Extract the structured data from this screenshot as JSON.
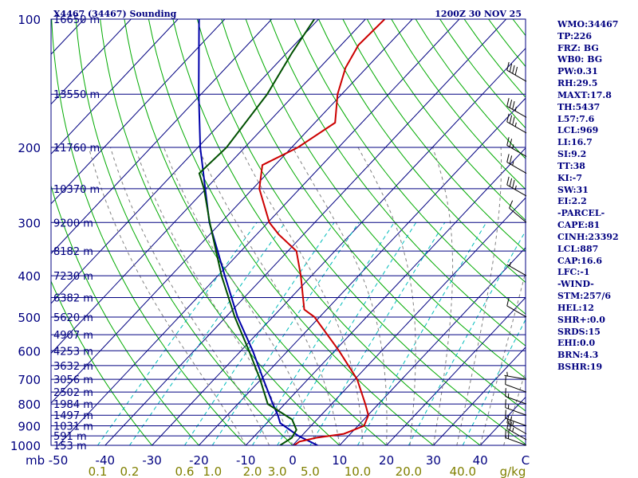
{
  "chart_data": {
    "type": "skew-t",
    "title_left": "X4467 (34467) Sounding",
    "title_right": "1200Z 30 NOV 25",
    "pressure_levels": [
      100,
      200,
      300,
      400,
      500,
      600,
      700,
      800,
      900,
      1000
    ],
    "pressure_labels": [
      "100",
      "200",
      "300",
      "400",
      "500",
      "600",
      "700",
      "800",
      "900",
      "1000"
    ],
    "pressure_unit": "mb",
    "temperature_ticks": [
      -50,
      -40,
      -30,
      -20,
      -10,
      0,
      10,
      20,
      30,
      40
    ],
    "temperature_labels": [
      "-50",
      "-40",
      "-30",
      "-20",
      "-10",
      "0",
      "10",
      "20",
      "30",
      "40"
    ],
    "temperature_unit": "C",
    "mixing_ratio_labels": [
      "0.1",
      "0.2",
      "0.6",
      "1.0",
      "2.0",
      "3.0",
      "5.0",
      "10.0",
      "20.0",
      "40.0"
    ],
    "mixing_ratio_unit": "g/kg",
    "height_levels": [
      {
        "p": 100,
        "label": "16650 m"
      },
      {
        "p": 150,
        "label": "13550 m"
      },
      {
        "p": 200,
        "label": "11760 m"
      },
      {
        "p": 250,
        "label": "10370 m"
      },
      {
        "p": 300,
        "label": "9200 m"
      },
      {
        "p": 350,
        "label": "8182 m"
      },
      {
        "p": 400,
        "label": "7230 m"
      },
      {
        "p": 450,
        "label": "6382 m"
      },
      {
        "p": 500,
        "label": "5620 m"
      },
      {
        "p": 550,
        "label": "4907 m"
      },
      {
        "p": 600,
        "label": "4253 m"
      },
      {
        "p": 650,
        "label": "3632 m"
      },
      {
        "p": 700,
        "label": "3056 m"
      },
      {
        "p": 750,
        "label": "2502 m"
      },
      {
        "p": 800,
        "label": "1984 m"
      },
      {
        "p": 850,
        "label": "1497 m"
      },
      {
        "p": 900,
        "label": "1031 m"
      },
      {
        "p": 950,
        "label": "591 m"
      },
      {
        "p": 1000,
        "label": "153 m"
      }
    ],
    "temperature_profile": [
      {
        "p": 1000,
        "t": 0.3
      },
      {
        "p": 980,
        "t": 0.7
      },
      {
        "p": 960,
        "t": 3.5
      },
      {
        "p": 940,
        "t": 8.6
      },
      {
        "p": 900,
        "t": 11.3
      },
      {
        "p": 850,
        "t": 10.1
      },
      {
        "p": 800,
        "t": 7.2
      },
      {
        "p": 700,
        "t": 0.5
      },
      {
        "p": 600,
        "t": -9.1
      },
      {
        "p": 500,
        "t": -21.1
      },
      {
        "p": 480,
        "t": -24.8
      },
      {
        "p": 400,
        "t": -32.3
      },
      {
        "p": 350,
        "t": -38.2
      },
      {
        "p": 320,
        "t": -45.3
      },
      {
        "p": 300,
        "t": -49.7
      },
      {
        "p": 250,
        "t": -58.6
      },
      {
        "p": 220,
        "t": -62.7
      },
      {
        "p": 200,
        "t": -58.7
      },
      {
        "p": 175,
        "t": -55.7
      },
      {
        "p": 150,
        "t": -60.9
      },
      {
        "p": 130,
        "t": -64.5
      },
      {
        "p": 115,
        "t": -66.3
      },
      {
        "p": 100,
        "t": -65.9
      }
    ],
    "dewpoint_profile": [
      {
        "p": 1000,
        "t": -2.7
      },
      {
        "p": 980,
        "t": -2.2
      },
      {
        "p": 960,
        "t": -1.7
      },
      {
        "p": 920,
        "t": -2.3
      },
      {
        "p": 870,
        "t": -5.3
      },
      {
        "p": 800,
        "t": -13.6
      },
      {
        "p": 700,
        "t": -20.2
      },
      {
        "p": 600,
        "t": -28.3
      },
      {
        "p": 500,
        "t": -38.1
      },
      {
        "p": 400,
        "t": -49.2
      },
      {
        "p": 300,
        "t": -62.4
      },
      {
        "p": 250,
        "t": -70.4
      },
      {
        "p": 230,
        "t": -74.5
      },
      {
        "p": 200,
        "t": -73.9
      },
      {
        "p": 150,
        "t": -75.9
      },
      {
        "p": 120,
        "t": -78.9
      },
      {
        "p": 100,
        "t": -80.9
      }
    ],
    "parcel_profile": [
      {
        "p": 1000,
        "t": 5.3
      },
      {
        "p": 950,
        "t": -0.7
      },
      {
        "p": 887,
        "t": -7.1
      },
      {
        "p": 850,
        "t": -9.2
      },
      {
        "p": 800,
        "t": -12.5
      },
      {
        "p": 700,
        "t": -19.5
      },
      {
        "p": 600,
        "t": -27.5
      },
      {
        "p": 500,
        "t": -37.5
      },
      {
        "p": 400,
        "t": -48.5
      },
      {
        "p": 300,
        "t": -62.5
      },
      {
        "p": 200,
        "t": -79.5
      },
      {
        "p": 150,
        "t": -90.5
      },
      {
        "p": 100,
        "t": -105.5
      }
    ],
    "series_colors": {
      "temperature": "#cc0000",
      "dewpoint": "#005000",
      "parcel": "#0000aa"
    },
    "grid_colors": {
      "isobar": "#000080",
      "isotherm": "#000080",
      "dry_adiabat": "#00aa00",
      "mixing_ratio": "#00bbbb",
      "moist_adiabat": "#808080"
    },
    "wind_barbs": [
      {
        "p": 1000,
        "dir": 290,
        "spd": 20
      },
      {
        "p": 970,
        "dir": 300,
        "spd": 25
      },
      {
        "p": 940,
        "dir": 300,
        "spd": 25
      },
      {
        "p": 900,
        "dir": 290,
        "spd": 10
      },
      {
        "p": 850,
        "dir": 290,
        "spd": 15
      },
      {
        "p": 800,
        "dir": 290,
        "spd": 15
      },
      {
        "p": 750,
        "dir": 290,
        "spd": 10
      },
      {
        "p": 700,
        "dir": 280,
        "spd": 5
      },
      {
        "p": 500,
        "dir": 300,
        "spd": 10
      },
      {
        "p": 400,
        "dir": 300,
        "spd": 5
      },
      {
        "p": 300,
        "dir": 310,
        "spd": 10
      },
      {
        "p": 260,
        "dir": 300,
        "spd": 35
      },
      {
        "p": 230,
        "dir": 300,
        "spd": 25
      },
      {
        "p": 210,
        "dir": 300,
        "spd": 25
      },
      {
        "p": 185,
        "dir": 300,
        "spd": 35
      },
      {
        "p": 170,
        "dir": 300,
        "spd": 35
      },
      {
        "p": 140,
        "dir": 300,
        "spd": 40
      }
    ],
    "stats": [
      "WMO:34467",
      "TP:226",
      "FRZ: BG",
      "WB0: BG",
      "PW:0.31",
      "RH:29.5",
      "MAXT:17.8",
      "TH:5437",
      "L57:7.6",
      "LCL:969",
      "LI:16.7",
      "SI:9.2",
      "TT:38",
      "KI:-7",
      "SW:31",
      "EI:2.2",
      "-PARCEL-",
      "CAPE:81",
      "CINH:23392",
      "LCL:887",
      "CAP:16.6",
      "LFC:-1",
      "-WIND-",
      "STM:257/6",
      "HEL:12",
      "SHR+:0.0",
      "SRDS:15",
      "EHI:0.0",
      "BRN:4.3",
      "BSHR:19"
    ]
  }
}
